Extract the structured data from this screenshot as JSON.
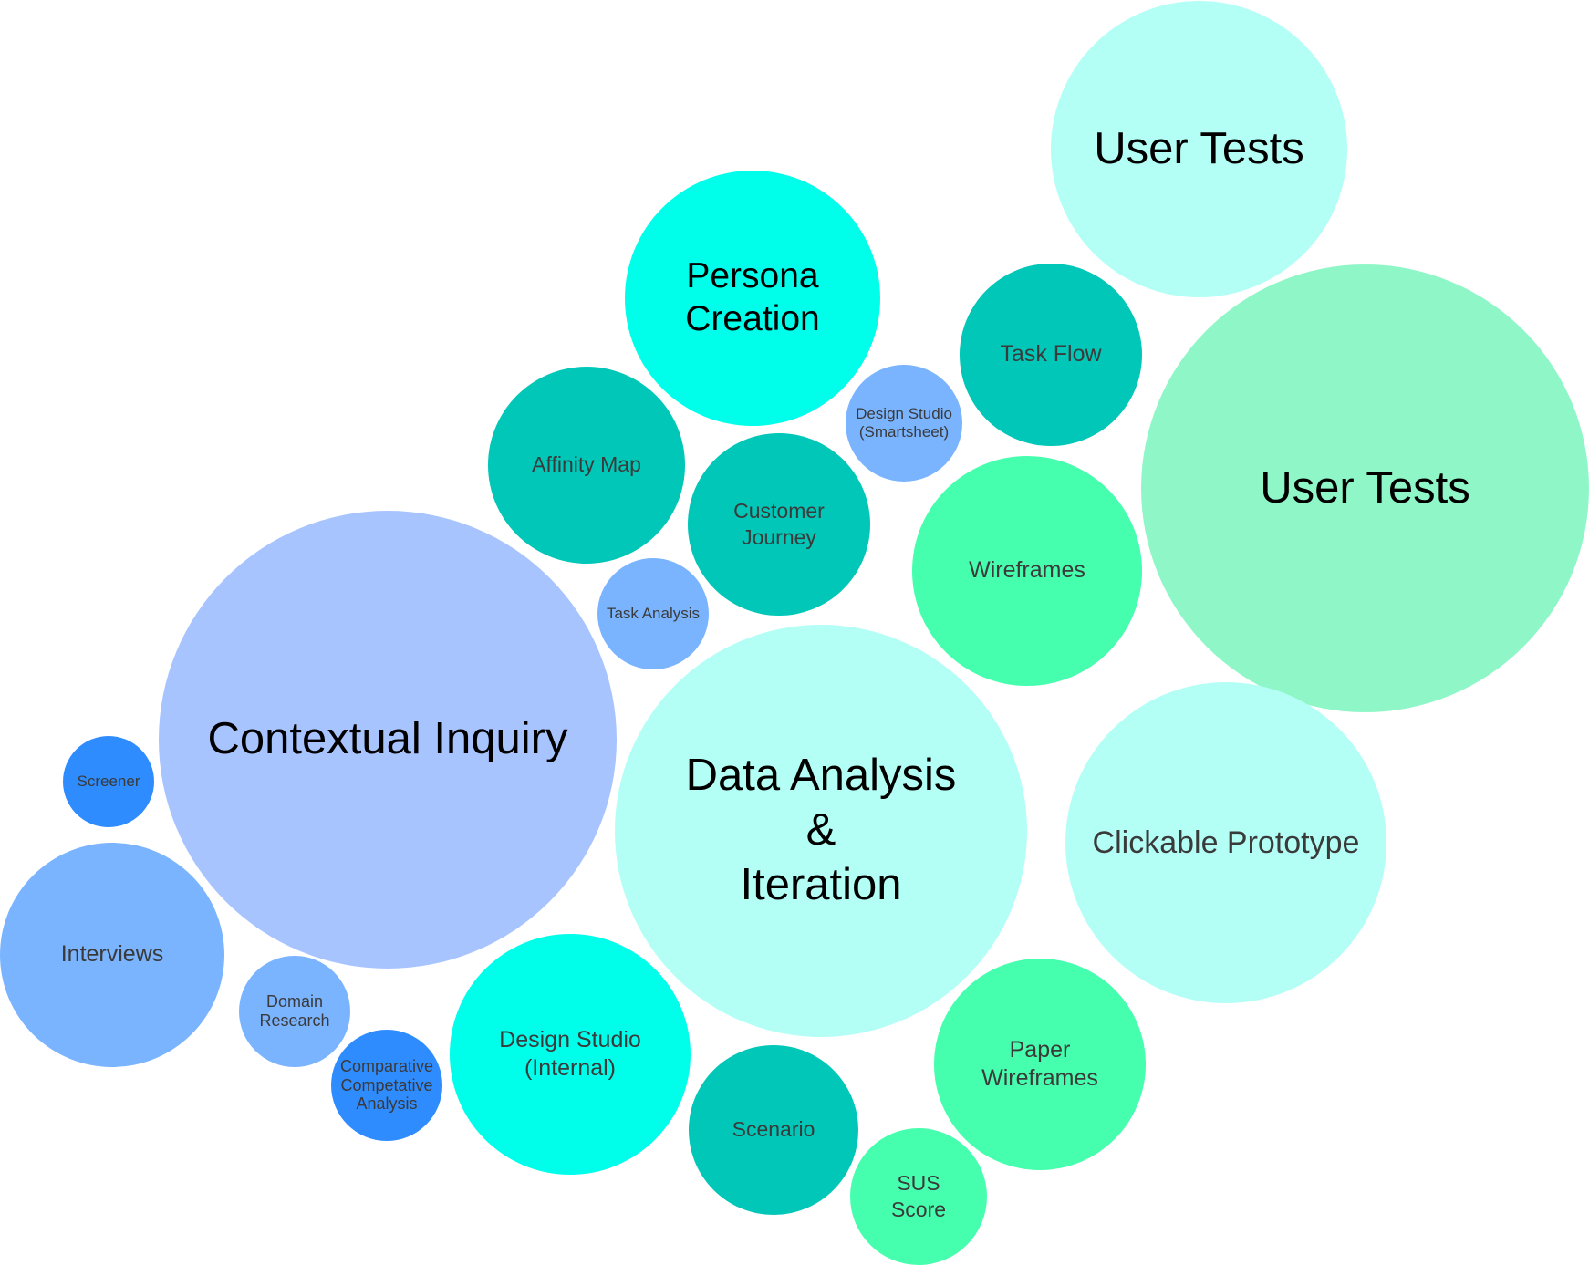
{
  "bubbles": [
    {
      "id": "user-tests-top",
      "label": "User Tests",
      "color": "#b3fff6",
      "text_color": "#000000"
    },
    {
      "id": "user-tests-large",
      "label": "User Tests",
      "color": "#8ff7c7",
      "text_color": "#000000"
    },
    {
      "id": "persona-creation",
      "label": "Persona\nCreation",
      "color": "#00ffea",
      "text_color": "#000000"
    },
    {
      "id": "task-flow",
      "label": "Task Flow",
      "color": "#00c7b7",
      "text_color": "#3a3a3a"
    },
    {
      "id": "design-studio-smartsheet",
      "label": "Design Studio\n(Smartsheet)",
      "color": "#7ab4ff",
      "text_color": "#3a3a3a"
    },
    {
      "id": "affinity-map",
      "label": "Affinity Map",
      "color": "#00c7b7",
      "text_color": "#3a3a3a"
    },
    {
      "id": "customer-journey",
      "label": "Customer\nJourney",
      "color": "#00c7b7",
      "text_color": "#3a3a3a"
    },
    {
      "id": "wireframes",
      "label": "Wireframes",
      "color": "#45ffae",
      "text_color": "#3a3a3a"
    },
    {
      "id": "task-analysis",
      "label": "Task Analysis",
      "color": "#7ab4ff",
      "text_color": "#3a3a3a"
    },
    {
      "id": "contextual-inquiry",
      "label": "Contextual Inquiry",
      "color": "#a8c4ff",
      "text_color": "#000000"
    },
    {
      "id": "data-analysis-iteration",
      "label": "Data Analysis\n&\nIteration",
      "color": "#b3fff6",
      "text_color": "#000000"
    },
    {
      "id": "clickable-prototype",
      "label": "Clickable Prototype",
      "color": "#b3fff6",
      "text_color": "#3a3a3a"
    },
    {
      "id": "screener",
      "label": "Screener",
      "color": "#2e8cff",
      "text_color": "#3a3a3a"
    },
    {
      "id": "interviews",
      "label": "Interviews",
      "color": "#7ab4ff",
      "text_color": "#3a3a3a"
    },
    {
      "id": "domain-research",
      "label": "Domain\nResearch",
      "color": "#7ab4ff",
      "text_color": "#3a3a3a"
    },
    {
      "id": "comparative-competative-analysis",
      "label": "Comparative\nCompetative\nAnalysis",
      "color": "#2e8cff",
      "text_color": "#3a3a3a"
    },
    {
      "id": "design-studio-internal",
      "label": "Design Studio\n(Internal)",
      "color": "#00ffea",
      "text_color": "#3a3a3a"
    },
    {
      "id": "scenario",
      "label": "Scenario",
      "color": "#00c7b7",
      "text_color": "#3a3a3a"
    },
    {
      "id": "paper-wireframes",
      "label": "Paper\nWireframes",
      "color": "#45ffae",
      "text_color": "#3a3a3a"
    },
    {
      "id": "sus-score",
      "label": "SUS\nScore",
      "color": "#45ffae",
      "text_color": "#3a3a3a"
    }
  ]
}
